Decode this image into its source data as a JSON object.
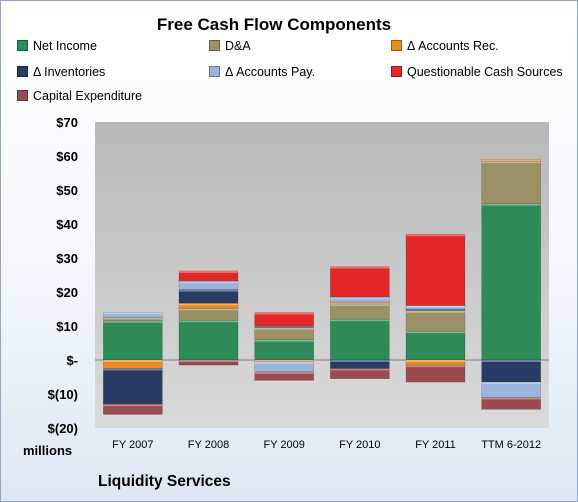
{
  "chart_data": {
    "type": "bar",
    "stacked": true,
    "title": "Free Cash Flow Components",
    "units_label": "millions",
    "company": "Liquidity Services",
    "categories": [
      "FY 2007",
      "FY 2008",
      "FY 2009",
      "FY 2010",
      "FY 2011",
      "TTM 6-2012"
    ],
    "ylim": [
      -20,
      70
    ],
    "y_ticks": [
      70,
      60,
      50,
      40,
      30,
      20,
      10,
      0,
      -10,
      -20
    ],
    "y_tick_labels": [
      "$70",
      "$60",
      "$50",
      "$40",
      "$30",
      "$20",
      "$10",
      "$-",
      "$(10)",
      "$(20)"
    ],
    "legend_position": "top",
    "grid": false,
    "series": [
      {
        "name": "Net Income",
        "color": "#2e8b57",
        "values": [
          11.5,
          11.7,
          6.0,
          12.0,
          8.5,
          46.0
        ]
      },
      {
        "name": "D&A",
        "color": "#9c9164",
        "values": [
          1.0,
          3.5,
          3.5,
          4.5,
          6.0,
          12.5
        ]
      },
      {
        "name": "Δ Accounts Rec.",
        "color": "#ed8b20",
        "values": [
          -2.5,
          1.5,
          -0.5,
          0.5,
          -1.5,
          0.5
        ]
      },
      {
        "name": "Δ Inventories",
        "color": "#283c66",
        "values": [
          -10.5,
          4.0,
          0.5,
          -2.5,
          0.5,
          -6.5
        ]
      },
      {
        "name": "Δ Accounts Pay.",
        "color": "#9ab4dc",
        "values": [
          1.5,
          2.5,
          -3.0,
          1.5,
          1.0,
          -4.5
        ]
      },
      {
        "name": "Questionable Cash Sources",
        "color": "#e42828",
        "values": [
          0,
          3.0,
          4.0,
          9.0,
          21.0,
          0
        ]
      },
      {
        "name": "Capital Expenditure",
        "color": "#9b4b50",
        "values": [
          -3.0,
          -1.5,
          -2.5,
          -3.0,
          -5.0,
          -3.5
        ]
      }
    ]
  }
}
